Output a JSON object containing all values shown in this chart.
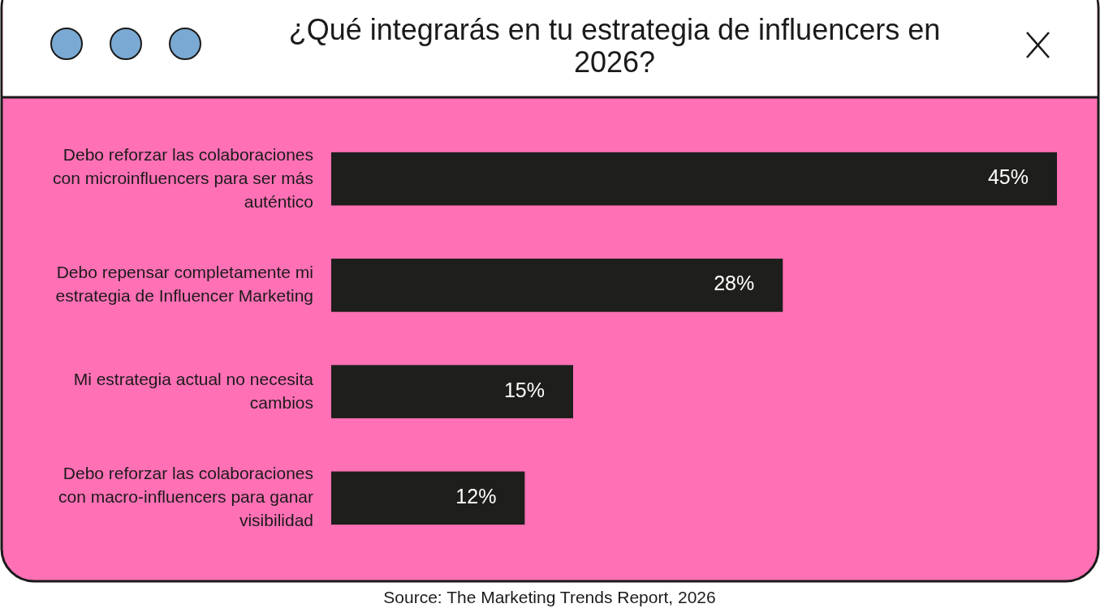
{
  "chart_data": {
    "type": "bar",
    "orientation": "horizontal",
    "title": "¿Qué integrarás en tu estrategia de influencers en 2026?",
    "categories": [
      "Debo reforzar las colaboraciones con microinfluencers para ser más auténtico",
      "Debo repensar completamente mi estrategia de Influencer Marketing",
      "Mi estrategia actual no necesita cambios",
      "Debo reforzar las colaboraciones con macro-influencers para ganar visibilidad"
    ],
    "values": [
      45,
      28,
      15,
      12
    ],
    "value_labels": [
      "45%",
      "28%",
      "15%",
      "12%"
    ],
    "color": "#1e1e1c",
    "annotations": [
      "Source: The Marketing Trends Report, 2026"
    ]
  }
}
